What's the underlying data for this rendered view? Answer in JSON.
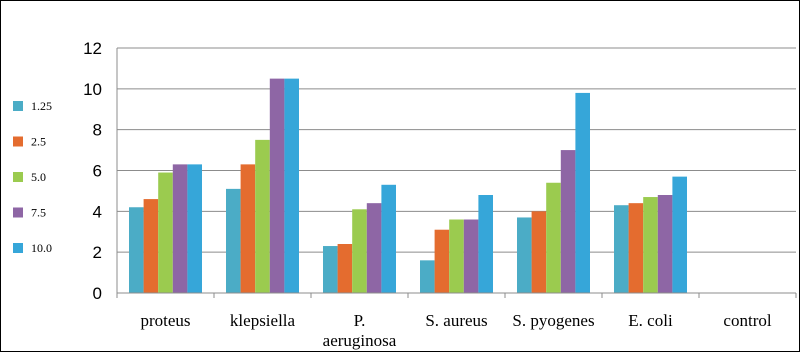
{
  "chart_data": {
    "type": "bar",
    "title": "",
    "xlabel": "",
    "ylabel": "",
    "ylim": [
      0,
      12
    ],
    "yticks": [
      0,
      2,
      4,
      6,
      8,
      10,
      12
    ],
    "grid": true,
    "legend_position": "left",
    "categories": [
      [
        "proteus"
      ],
      [
        "klepsiella"
      ],
      [
        "P.",
        "aeruginosa"
      ],
      [
        "S. aureus"
      ],
      [
        "S. pyogenes"
      ],
      [
        "E. coli"
      ],
      [
        "control"
      ]
    ],
    "series": [
      {
        "name": "1.25",
        "color": "#4BACC6",
        "values": [
          4.2,
          5.1,
          2.3,
          1.6,
          3.7,
          4.3,
          0
        ]
      },
      {
        "name": "2.5",
        "color": "#E46C2F",
        "values": [
          4.6,
          6.3,
          2.4,
          3.1,
          4.0,
          4.4,
          0
        ]
      },
      {
        "name": "5.0",
        "color": "#9BCB4F",
        "values": [
          5.9,
          7.5,
          4.1,
          3.6,
          5.4,
          4.7,
          0
        ]
      },
      {
        "name": "7.5",
        "color": "#8E66A5",
        "values": [
          6.3,
          10.5,
          4.4,
          3.6,
          7.0,
          4.8,
          0
        ]
      },
      {
        "name": "10.0",
        "color": "#36A6D9",
        "values": [
          6.3,
          10.5,
          5.3,
          4.8,
          9.8,
          5.7,
          0
        ]
      }
    ]
  }
}
